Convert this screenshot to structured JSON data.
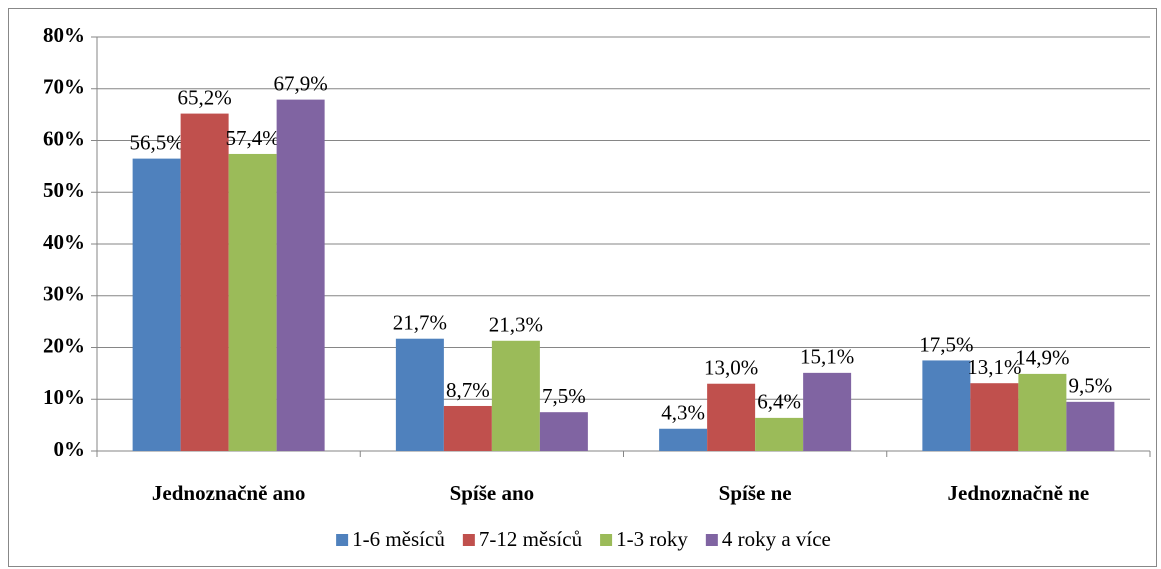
{
  "chart_data": {
    "type": "bar",
    "categories": [
      "Jednoznačně ano",
      "Spíše ano",
      "Spíše ne",
      "Jednoznačně ne"
    ],
    "series": [
      {
        "name": "1-6 měsíců",
        "color": "#4f81bd",
        "values": [
          56.5,
          21.7,
          4.3,
          17.5
        ],
        "value_labels": [
          "56,5%",
          "21,7%",
          "4,3%",
          "17,5%"
        ]
      },
      {
        "name": "7-12 měsíců",
        "color": "#c0504d",
        "values": [
          65.2,
          8.7,
          13.0,
          13.1
        ],
        "value_labels": [
          "65,2%",
          "8,7%",
          "13,0%",
          "13,1%"
        ]
      },
      {
        "name": "1-3 roky",
        "color": "#9bbb59",
        "values": [
          57.4,
          21.3,
          6.4,
          14.9
        ],
        "value_labels": [
          "57,4%",
          "21,3%",
          "6,4%",
          "14,9%"
        ]
      },
      {
        "name": "4 roky a více",
        "color": "#8064a2",
        "values": [
          67.9,
          7.5,
          15.1,
          9.5
        ],
        "value_labels": [
          "67,9%",
          "7,5%",
          "15,1%",
          "9,5%"
        ]
      }
    ],
    "ylim": [
      0,
      80
    ],
    "yticks": [
      {
        "value": 0,
        "label": "0%"
      },
      {
        "value": 10,
        "label": "10%"
      },
      {
        "value": 20,
        "label": "20%"
      },
      {
        "value": 30,
        "label": "30%"
      },
      {
        "value": 40,
        "label": "40%"
      },
      {
        "value": 50,
        "label": "50%"
      },
      {
        "value": 60,
        "label": "60%"
      },
      {
        "value": 70,
        "label": "70%"
      },
      {
        "value": 80,
        "label": "80%"
      }
    ],
    "grid": true,
    "legend": "bottom"
  }
}
